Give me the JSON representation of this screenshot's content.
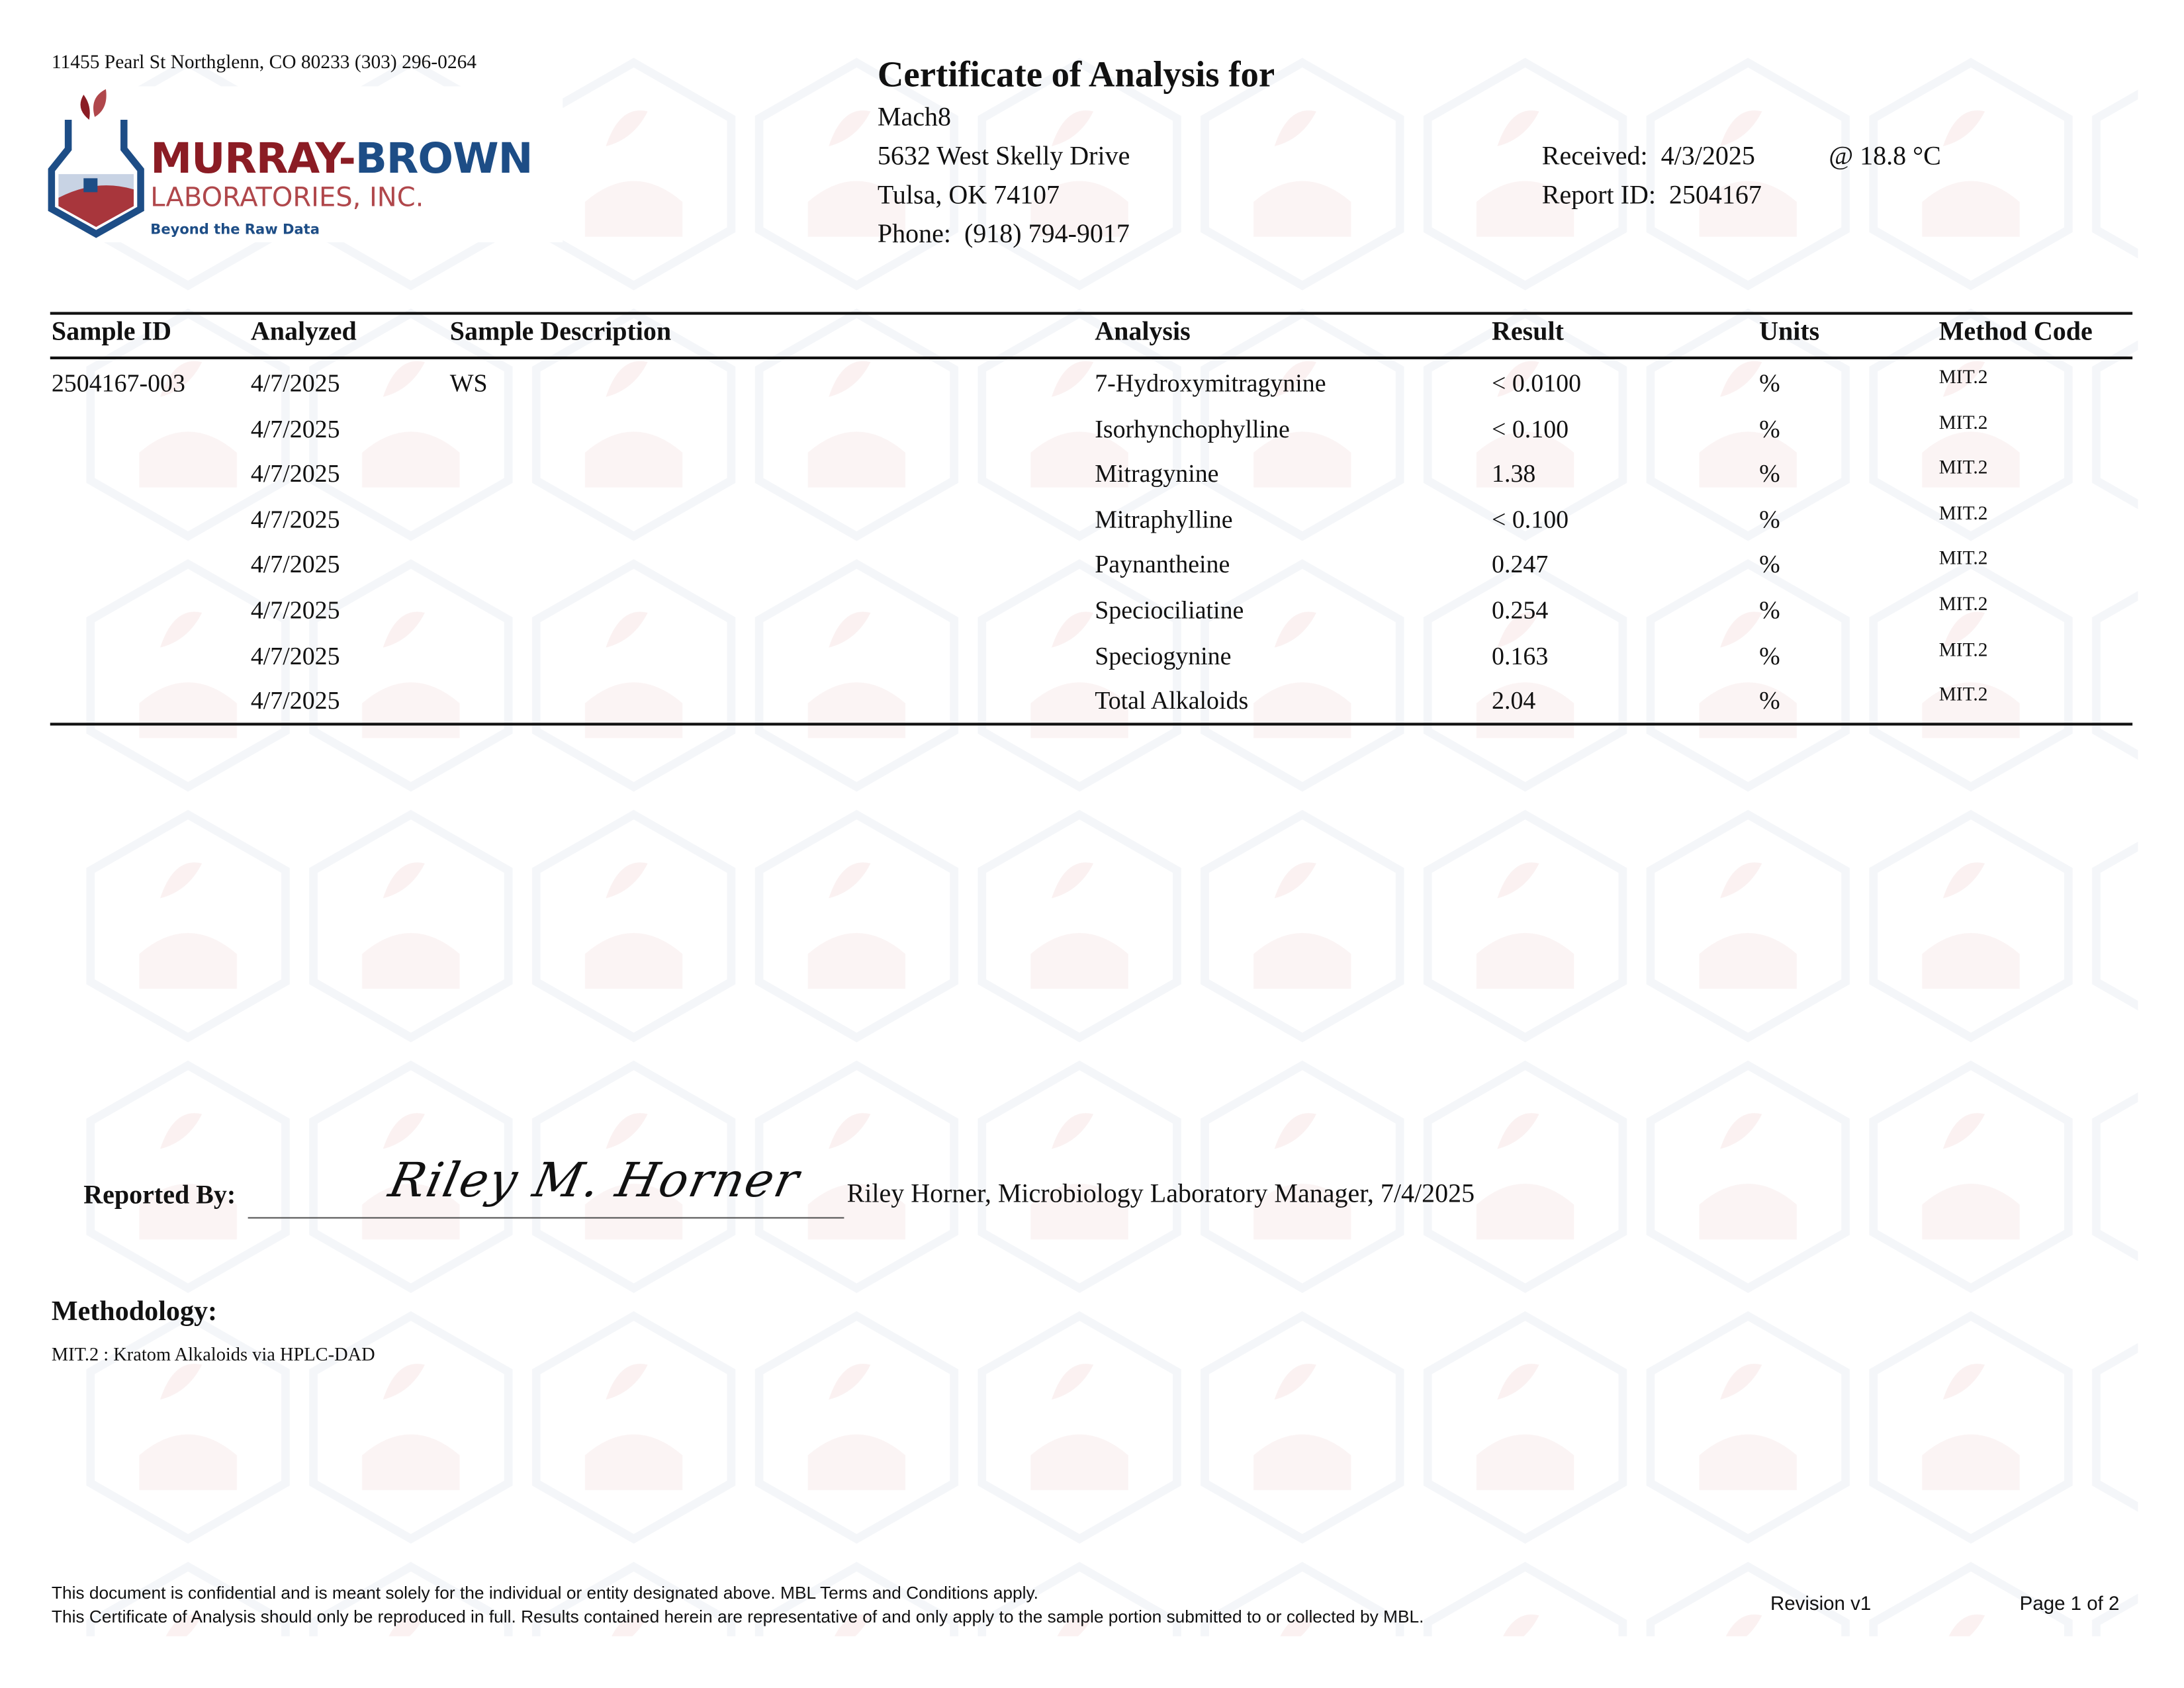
{
  "lab": {
    "address": "11455 Pearl St Northglenn, CO 80233 (303) 296-0264",
    "logo_name_1": "MURRAY-",
    "logo_name_2": "BROWN",
    "logo_line2": "LABORATORIES, INC.",
    "tagline": "Beyond the Raw Data",
    "colors": {
      "red": "#8b1c24",
      "blue": "#1d4d86",
      "light_red": "#b0474b"
    }
  },
  "client": {
    "title": "Certificate of Analysis for",
    "name": "Mach8",
    "street": "5632 West Skelly Drive",
    "city": "Tulsa, OK 74107",
    "phone_label": "Phone:",
    "phone": "(918) 794-9017"
  },
  "report": {
    "received_label": "Received:",
    "received": "4/3/2025",
    "temperature": "@ 18.8 °C",
    "report_id_label": "Report ID:",
    "report_id": "2504167"
  },
  "table": {
    "headers": [
      "Sample ID",
      "Analyzed",
      "Sample Description",
      "Analysis",
      "Result",
      "Units",
      "Method Code"
    ],
    "rows": [
      {
        "sample_id": "2504167-003",
        "analyzed": "4/7/2025",
        "description": "WS",
        "analysis": "7-Hydroxymitragynine",
        "result": "< 0.0100",
        "units": "%",
        "method": "MIT.2"
      },
      {
        "sample_id": "",
        "analyzed": "4/7/2025",
        "description": "",
        "analysis": "Isorhynchophylline",
        "result": "< 0.100",
        "units": "%",
        "method": "MIT.2"
      },
      {
        "sample_id": "",
        "analyzed": "4/7/2025",
        "description": "",
        "analysis": "Mitragynine",
        "result": "1.38",
        "units": "%",
        "method": "MIT.2"
      },
      {
        "sample_id": "",
        "analyzed": "4/7/2025",
        "description": "",
        "analysis": "Mitraphylline",
        "result": "< 0.100",
        "units": "%",
        "method": "MIT.2"
      },
      {
        "sample_id": "",
        "analyzed": "4/7/2025",
        "description": "",
        "analysis": "Paynantheine",
        "result": "0.247",
        "units": "%",
        "method": "MIT.2"
      },
      {
        "sample_id": "",
        "analyzed": "4/7/2025",
        "description": "",
        "analysis": "Speciociliatine",
        "result": "0.254",
        "units": "%",
        "method": "MIT.2"
      },
      {
        "sample_id": "",
        "analyzed": "4/7/2025",
        "description": "",
        "analysis": "Speciogynine",
        "result": "0.163",
        "units": "%",
        "method": "MIT.2"
      },
      {
        "sample_id": "",
        "analyzed": "4/7/2025",
        "description": "",
        "analysis": "Total Alkaloids",
        "result": "2.04",
        "units": "%",
        "method": "MIT.2"
      }
    ]
  },
  "signature": {
    "label": "Reported By:",
    "signature_text": "Riley M. Horner",
    "signer": "Riley Horner, Microbiology Laboratory Manager, 7/4/2025"
  },
  "methodology": {
    "heading": "Methodology:",
    "entry": "MIT.2 :  Kratom Alkaloids via HPLC-DAD"
  },
  "footer": {
    "line1": "This document is confidential and is meant solely for the individual or entity designated above.  MBL Terms and Conditions apply.",
    "line2": "This Certificate of Analysis should only be reproduced in full.  Results contained herein are representative of and only apply to the sample portion submitted to or collected by MBL.",
    "revision": "Revision v1",
    "page": "Page 1 of 2"
  }
}
